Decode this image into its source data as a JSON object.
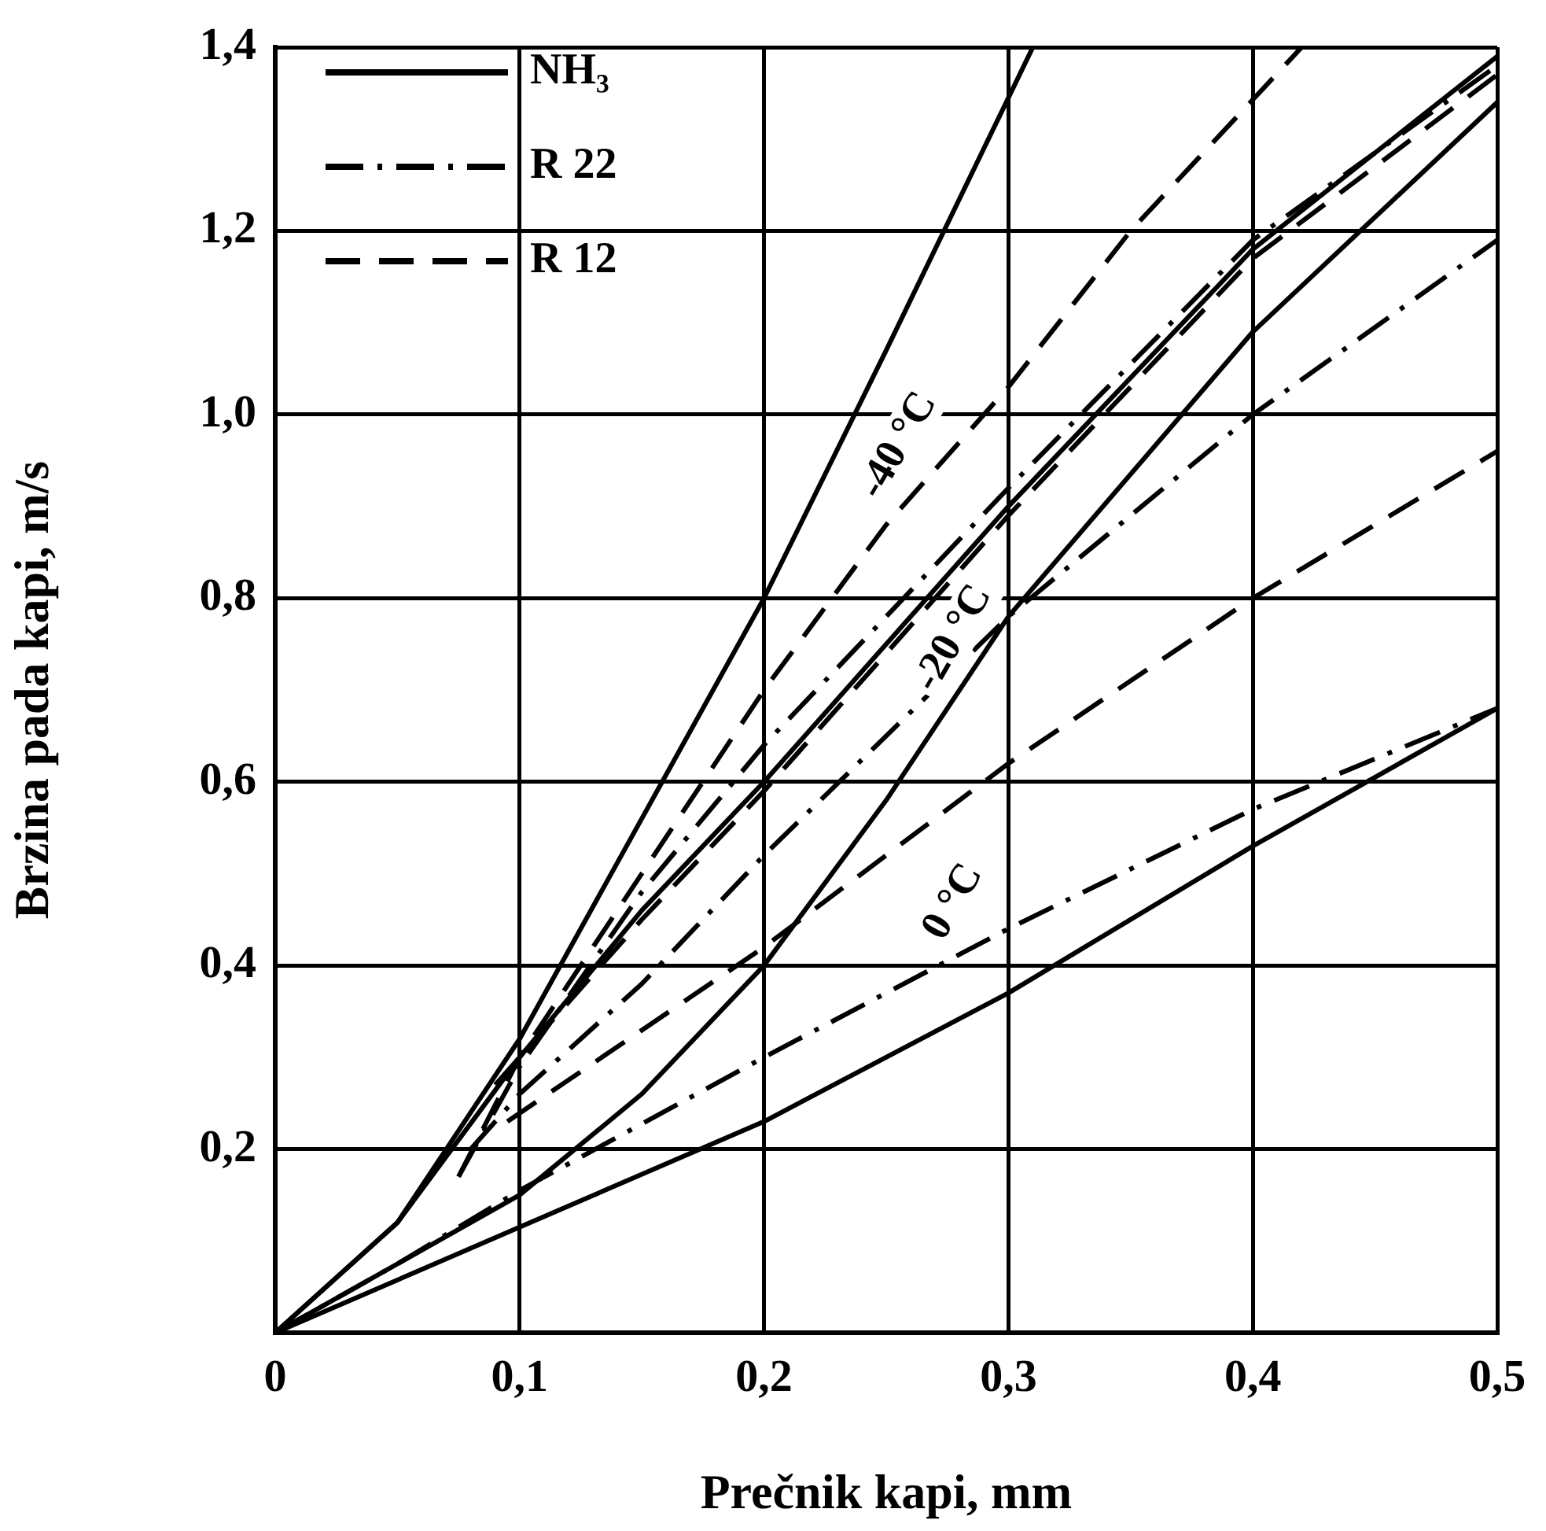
{
  "chart_data": {
    "type": "line",
    "xlabel": "Prečnik kapi, mm",
    "ylabel": "Brzina pada kapi, m/s",
    "xlim": [
      0,
      0.5
    ],
    "xticks": [
      0,
      {
        "value": 0.1,
        "label": "0,1"
      },
      {
        "value": 0.2,
        "label": "0,2"
      },
      {
        "value": 0.3,
        "label": "0,3"
      },
      {
        "value": 0.4,
        "label": "0,4"
      },
      {
        "value": 0.5,
        "label": "0,5"
      }
    ],
    "ylim": [
      0,
      1.4
    ],
    "yticks": [
      {
        "value": 0,
        "label": null
      },
      {
        "value": 0.2,
        "label": "0,2"
      },
      {
        "value": 0.4,
        "label": "0,4"
      },
      {
        "value": 0.6,
        "label": "0,6"
      },
      {
        "value": 0.8,
        "label": "0,8"
      },
      {
        "value": 1.0,
        "label": "1,0"
      },
      {
        "value": 1.2,
        "label": "1,2"
      },
      {
        "value": 1.4,
        "label": "1,4"
      }
    ],
    "grid": true,
    "legend": "top left",
    "marker": "none",
    "series": [
      {
        "name": "NH₃",
        "color": "#000000",
        "line_style": "solid",
        "x": [
          0,
          0.05,
          0.07,
          0.1,
          0.15,
          0.2,
          0.25,
          0.31
        ],
        "values": [
          0,
          0.12,
          0.2,
          0.32,
          0.56,
          0.8,
          1.07,
          1.4
        ]
      },
      {
        "name": "R 22",
        "color": "#000000",
        "line_style": "dashdot",
        "x": [
          0.075,
          0.1,
          0.15,
          0.2,
          0.3,
          0.4,
          0.5
        ],
        "values": [
          0.17,
          0.29,
          0.48,
          0.64,
          0.92,
          1.19,
          1.38
        ]
      },
      {
        "name": "R 12",
        "color": "#000000",
        "line_style": "dashed",
        "x": [
          0.075,
          0.1,
          0.15,
          0.2,
          0.25,
          0.3,
          0.35,
          0.42
        ],
        "values": [
          0.17,
          0.3,
          0.5,
          0.7,
          0.88,
          1.03,
          1.2,
          1.4
        ]
      },
      {
        "color": "#000000",
        "line_style": "solid",
        "x": [
          0,
          0.05,
          0.1,
          0.15,
          0.2,
          0.3,
          0.4,
          0.5
        ],
        "values": [
          0,
          0.12,
          0.3,
          0.46,
          0.6,
          0.9,
          1.18,
          1.39
        ]
      },
      {
        "color": "#000000",
        "line_style": "dashed",
        "x": [
          0.09,
          0.15,
          0.2,
          0.3,
          0.4,
          0.5
        ],
        "values": [
          0.27,
          0.45,
          0.59,
          0.89,
          1.17,
          1.37
        ]
      },
      {
        "color": "#000000",
        "line_style": "solid",
        "x": [
          0,
          0.1,
          0.15,
          0.2,
          0.25,
          0.3,
          0.4,
          0.5
        ],
        "values": [
          0,
          0.15,
          0.26,
          0.4,
          0.58,
          0.78,
          1.09,
          1.34
        ]
      },
      {
        "color": "#000000",
        "line_style": "dashdot",
        "x": [
          0.08,
          0.1,
          0.15,
          0.2,
          0.25,
          0.3,
          0.4,
          0.5
        ],
        "values": [
          0.2,
          0.26,
          0.38,
          0.52,
          0.65,
          0.78,
          1.0,
          1.19
        ]
      },
      {
        "color": "#000000",
        "line_style": "dashed",
        "x": [
          0.095,
          0.2,
          0.3,
          0.4,
          0.5
        ],
        "values": [
          0.23,
          0.42,
          0.62,
          0.8,
          0.96
        ]
      },
      {
        "color": "#000000",
        "line_style": "dashdot",
        "x": [
          0,
          0.05,
          0.1,
          0.2,
          0.3,
          0.4,
          0.5
        ],
        "values": [
          0,
          0.075,
          0.155,
          0.3,
          0.44,
          0.57,
          0.68
        ]
      },
      {
        "color": "#000000",
        "line_style": "solid",
        "x": [
          0,
          0.1,
          0.2,
          0.3,
          0.4,
          0.5
        ],
        "values": [
          0,
          0.115,
          0.23,
          0.37,
          0.53,
          0.68
        ]
      }
    ],
    "annotations": [
      "-40 °C",
      "-20 °C",
      "0 °C"
    ]
  }
}
